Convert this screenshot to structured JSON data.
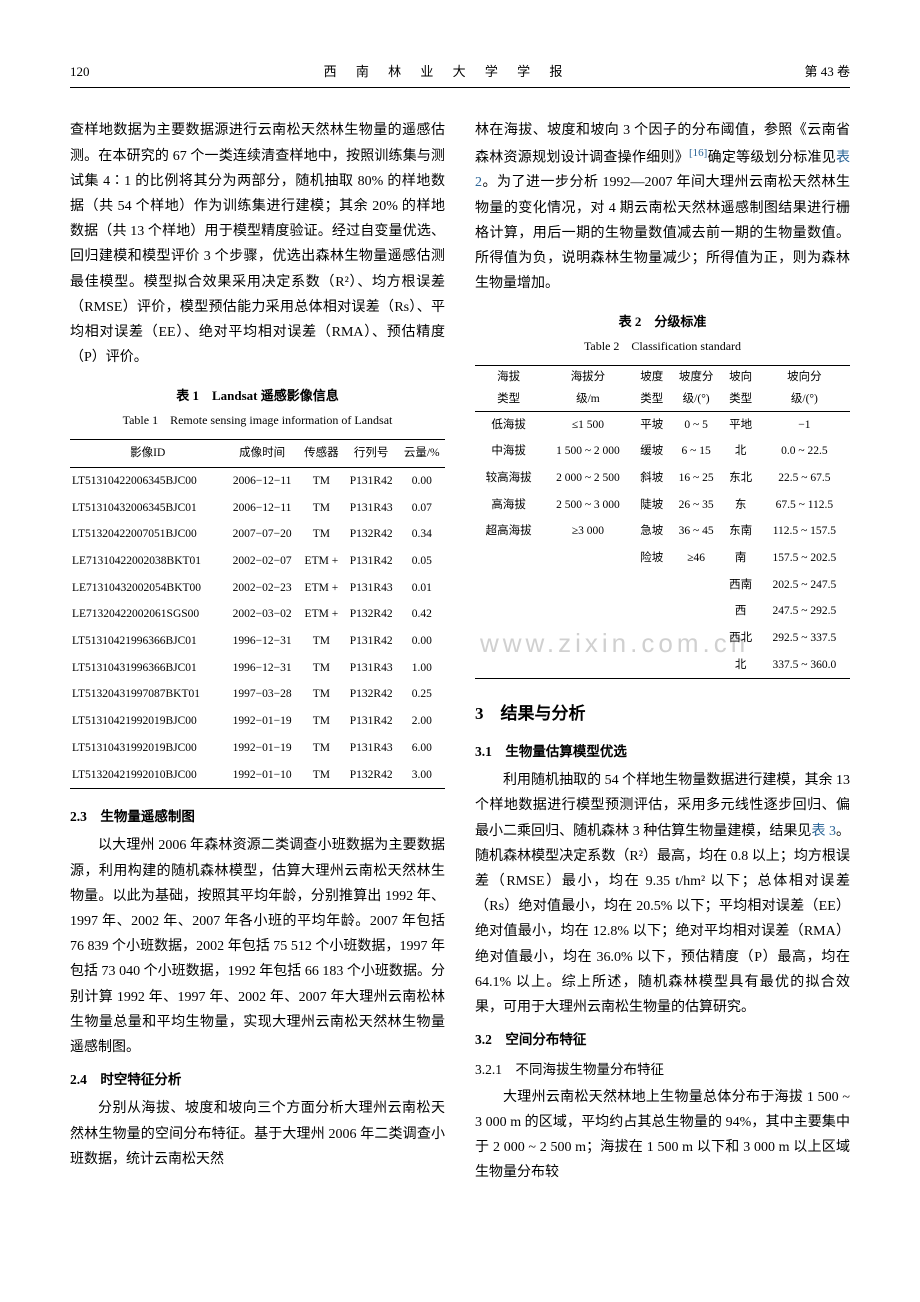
{
  "header": {
    "page": "120",
    "journal": "西 南 林 业 大 学 学 报",
    "volume": "第 43 卷"
  },
  "watermark": "www.zixin.com.cn",
  "leftCol": {
    "p1": "查样地数据为主要数据源进行云南松天然林生物量的遥感估测。在本研究的 67 个一类连续清查样地中，按照训练集与测试集 4∶1 的比例将其分为两部分，随机抽取 80% 的样地数据（共 54 个样地）作为训练集进行建模；其余 20% 的样地数据（共 13 个样地）用于模型精度验证。经过自变量优选、回归建模和模型评价 3 个步骤，优选出森林生物量遥感估测最佳模型。模型拟合效果采用决定系数（R²）、均方根误差（RMSE）评价，模型预估能力采用总体相对误差（Rs）、平均相对误差（EE）、绝对平均相对误差（RMA）、预估精度（P）评价。",
    "table1": {
      "title": "表 1　Landsat 遥感影像信息",
      "subtitle": "Table 1　Remote sensing image information of Landsat",
      "headers": [
        "影像ID",
        "成像时间",
        "传感器",
        "行列号",
        "云量/%"
      ],
      "rows": [
        [
          "LT51310422006345BJC00",
          "2006−12−11",
          "TM",
          "P131R42",
          "0.00"
        ],
        [
          "LT51310432006345BJC01",
          "2006−12−11",
          "TM",
          "P131R43",
          "0.07"
        ],
        [
          "LT51320422007051BJC00",
          "2007−07−20",
          "TM",
          "P132R42",
          "0.34"
        ],
        [
          "LE71310422002038BKT01",
          "2002−02−07",
          "ETM +",
          "P131R42",
          "0.05"
        ],
        [
          "LE71310432002054BKT00",
          "2002−02−23",
          "ETM +",
          "P131R43",
          "0.01"
        ],
        [
          "LE71320422002061SGS00",
          "2002−03−02",
          "ETM +",
          "P132R42",
          "0.42"
        ],
        [
          "LT51310421996366BJC01",
          "1996−12−31",
          "TM",
          "P131R42",
          "0.00"
        ],
        [
          "LT51310431996366BJC01",
          "1996−12−31",
          "TM",
          "P131R43",
          "1.00"
        ],
        [
          "LT51320431997087BKT01",
          "1997−03−28",
          "TM",
          "P132R42",
          "0.25"
        ],
        [
          "LT51310421992019BJC00",
          "1992−01−19",
          "TM",
          "P131R42",
          "2.00"
        ],
        [
          "LT51310431992019BJC00",
          "1992−01−19",
          "TM",
          "P131R43",
          "6.00"
        ],
        [
          "LT51320421992010BJC00",
          "1992−01−10",
          "TM",
          "P132R42",
          "3.00"
        ]
      ]
    },
    "sec23": "2.3　生物量遥感制图",
    "p2": "以大理州 2006 年森林资源二类调查小班数据为主要数据源，利用构建的随机森林模型，估算大理州云南松天然林生物量。以此为基础，按照其平均年龄，分别推算出 1992 年、1997 年、2002 年、2007 年各小班的平均年龄。2007 年包括 76 839 个小班数据，2002 年包括 75 512 个小班数据，1997 年包括 73 040 个小班数据，1992 年包括 66 183 个小班数据。分别计算 1992 年、1997 年、2002 年、2007 年大理州云南松林生物量总量和平均生物量，实现大理州云南松天然林生物量遥感制图。",
    "sec24": "2.4　时空特征分析",
    "p3": "分别从海拔、坡度和坡向三个方面分析大理州云南松天然林生物量的空间分布特征。基于大理州 2006 年二类调查小班数据，统计云南松天然"
  },
  "rightCol": {
    "p1a": "林在海拔、坡度和坡向 3 个因子的分布阈值，参照《云南省森林资源规划设计调查操作细则》",
    "ref": "[16]",
    "p1b": "确定等级划分标准见",
    "tableLink": "表 2",
    "p1c": "。为了进一步分析 1992—2007 年间大理州云南松天然林生物量的变化情况，对 4 期云南松天然林遥感制图结果进行栅格计算，用后一期的生物量数值减去前一期的生物量数值。所得值为负，说明森林生物量减少；所得值为正，则为森林生物量增加。",
    "table2": {
      "title": "表 2　分级标准",
      "subtitle": "Table 2　Classification standard",
      "headers": [
        [
          "海拔",
          "海拔分",
          "坡度",
          "坡度分",
          "坡向",
          "坡向分"
        ],
        [
          "类型",
          "级/m",
          "类型",
          "级/(°)",
          "类型",
          "级/(°)"
        ]
      ],
      "rows": [
        [
          "低海拔",
          "≤1 500",
          "平坡",
          "0 ~ 5",
          "平地",
          "−1"
        ],
        [
          "中海拔",
          "1 500 ~ 2 000",
          "缓坡",
          "6 ~ 15",
          "北",
          "0.0 ~ 22.5"
        ],
        [
          "较高海拔",
          "2 000 ~ 2 500",
          "斜坡",
          "16 ~ 25",
          "东北",
          "22.5 ~ 67.5"
        ],
        [
          "高海拔",
          "2 500 ~ 3 000",
          "陡坡",
          "26 ~ 35",
          "东",
          "67.5 ~ 112.5"
        ],
        [
          "超高海拔",
          "≥3 000",
          "急坡",
          "36 ~ 45",
          "东南",
          "112.5 ~ 157.5"
        ],
        [
          "",
          "",
          "险坡",
          "≥46",
          "南",
          "157.5 ~ 202.5"
        ],
        [
          "",
          "",
          "",
          "",
          "西南",
          "202.5 ~ 247.5"
        ],
        [
          "",
          "",
          "",
          "",
          "西",
          "247.5 ~ 292.5"
        ],
        [
          "",
          "",
          "",
          "",
          "西北",
          "292.5 ~ 337.5"
        ],
        [
          "",
          "",
          "",
          "",
          "北",
          "337.5 ~ 360.0"
        ]
      ]
    },
    "sec3": "3　结果与分析",
    "sec31": "3.1　生物量估算模型优选",
    "p2a": "利用随机抽取的 54 个样地生物量数据进行建模，其余 13 个样地数据进行模型预测评估，采用多元线性逐步回归、偏最小二乘回归、随机森林 3 种估算生物量建模，结果见",
    "tableLink2": "表 3",
    "p2b": "。随机森林模型决定系数（R²）最高，均在 0.8 以上；均方根误差（RMSE）最小，均在 9.35 t/hm² 以下；总体相对误差（Rs）绝对值最小，均在 20.5% 以下；平均相对误差（EE）绝对值最小，均在 12.8% 以下；绝对平均相对误差（RMA）绝对值最小，均在 36.0% 以下，预估精度（P）最高，均在 64.1% 以上。综上所述，随机森林模型具有最优的拟合效果，可用于大理州云南松生物量的估算研究。",
    "sec32": "3.2　空间分布特征",
    "sec321": "3.2.1　不同海拔生物量分布特征",
    "p3": "大理州云南松天然林地上生物量总体分布于海拔 1 500 ~ 3 000 m 的区域，平均约占其总生物量的 94%，其中主要集中于 2 000 ~ 2 500 m；海拔在 1 500 m 以下和 3 000 m 以上区域生物量分布较"
  }
}
